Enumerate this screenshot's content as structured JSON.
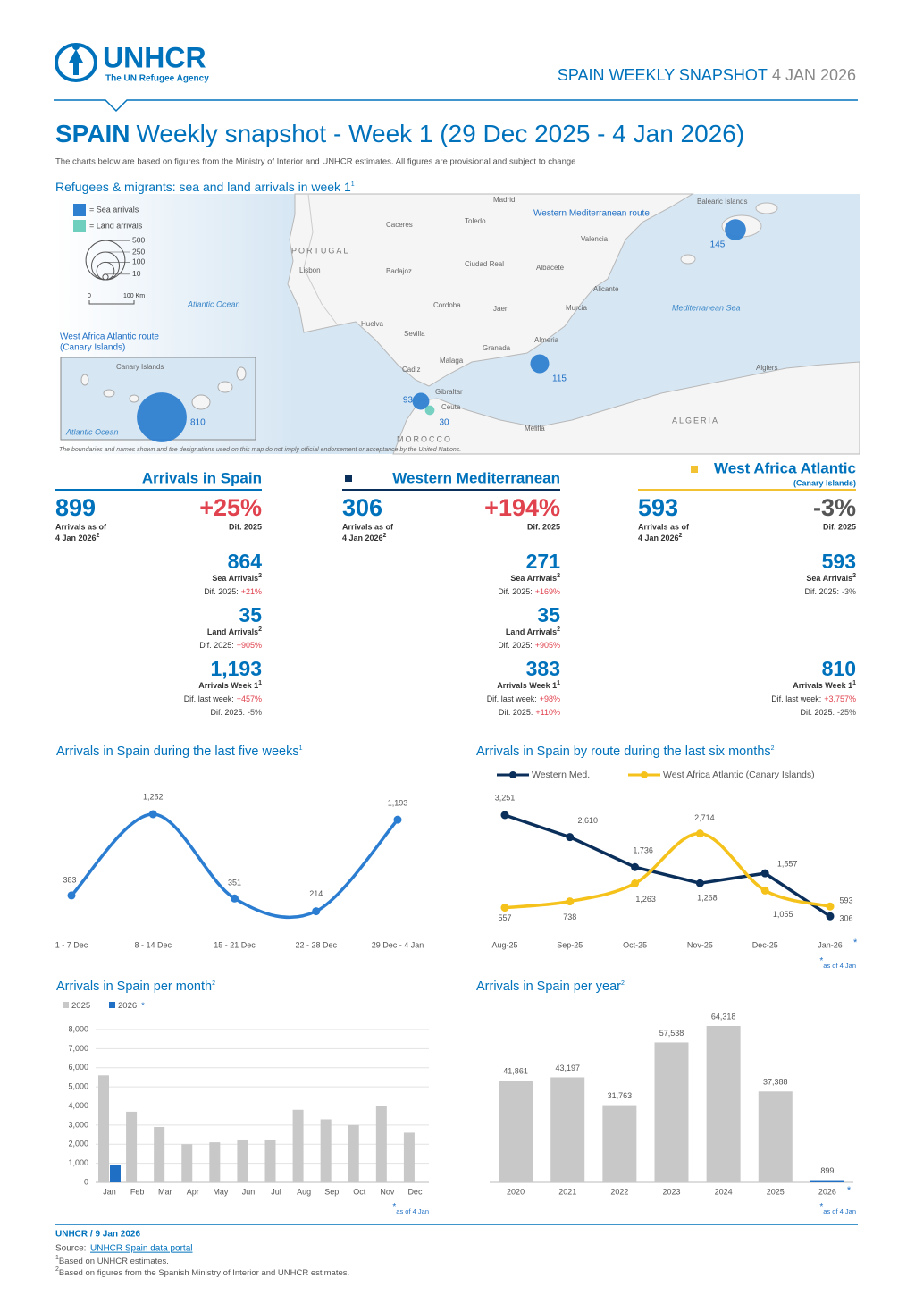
{
  "header": {
    "logo_name": "UNHCR",
    "logo_tagline": "The UN Refugee Agency",
    "snapshot_label": "SPAIN WEEKLY SNAPSHOT",
    "snapshot_date": "4 JAN 2026"
  },
  "title": {
    "country": "SPAIN",
    "text": "Weekly snapshot - Week 1 (29 Dec 2025 - 4 Jan 2026)",
    "intro": "The charts below are based on figures from the Ministry of Interior and UNHCR estimates. All figures are provisional and subject to change"
  },
  "map": {
    "title": "Refugees & migrants: sea and land arrivals in week 1",
    "title_note": "1",
    "legend": [
      {
        "label": "= Sea arrivals",
        "color": "#2f7fd0"
      },
      {
        "label": "= Land arrivals",
        "color": "#6fcfbf"
      }
    ],
    "size_legend": [
      500,
      250,
      100,
      10
    ],
    "scale_labels": [
      "0",
      "100 Km"
    ],
    "places": [
      "PORTUGAL",
      "Lisbon",
      "Caceres",
      "Toledo",
      "Madrid",
      "Badajoz",
      "Ciudad Real",
      "Valencia",
      "Albacete",
      "Murcia",
      "Cordoba",
      "Jaen",
      "Huelva",
      "Sevilla",
      "Granada",
      "Almeria",
      "Cadiz",
      "Malaga",
      "Gibraltar",
      "Ceuta",
      "Melilla",
      "Algiers",
      "ALGERIA",
      "MOROCCO",
      "Balearic Islands",
      "Atlantic Ocean",
      "Mediterranean Sea",
      "Western Mediterranean route",
      "West Africa Atlantic route",
      "(Canary Islands)",
      "Canary Islands",
      "Atlantic Ocean",
      "Alicante"
    ],
    "bubbles": [
      {
        "value": 145,
        "color": "#2f7fd0"
      },
      {
        "value": 115,
        "color": "#2f7fd0"
      },
      {
        "value": 93,
        "color": "#2f7fd0"
      },
      {
        "value": 30,
        "color": "#6fcfbf"
      },
      {
        "value": 810,
        "color": "#2f7fd0"
      }
    ],
    "disclaimer": "The boundaries and names shown and the designations used on this map do not imply official endorsement or acceptance by the United Nations."
  },
  "stats": [
    {
      "heading": "Arrivals in Spain",
      "main_value": "899",
      "main_label": "Arrivals as of",
      "main_date": "4 Jan 2026",
      "main_note": "2",
      "diff": "+25%",
      "diff_label": "Dif. 2025",
      "items": [
        {
          "value": "864",
          "label": "Sea Arrivals",
          "note": "2",
          "lines": [
            {
              "label": "Dif. 2025:",
              "value": "+21%"
            }
          ]
        },
        {
          "value": "35",
          "label": "Land Arrivals",
          "note": "2",
          "lines": [
            {
              "label": "Dif. 2025:",
              "value": "+905%"
            }
          ]
        },
        {
          "value": "1,193",
          "label": "Arrivals Week 1",
          "note": "1",
          "lines": [
            {
              "label": "Dif. last week:",
              "value": "+457%"
            },
            {
              "label": "Dif. 2025:",
              "value": "-5%"
            }
          ]
        }
      ]
    },
    {
      "heading": "Western Mediterranean",
      "main_value": "306",
      "main_label": "Arrivals as of",
      "main_date": "4 Jan 2026",
      "main_note": "2",
      "diff": "+194%",
      "diff_label": "Dif. 2025",
      "items": [
        {
          "value": "271",
          "label": "Sea Arrivals",
          "note": "2",
          "lines": [
            {
              "label": "Dif. 2025:",
              "value": "+169%"
            }
          ]
        },
        {
          "value": "35",
          "label": "Land Arrivals",
          "note": "2",
          "lines": [
            {
              "label": "Dif. 2025:",
              "value": "+905%"
            }
          ]
        },
        {
          "value": "383",
          "label": "Arrivals Week 1",
          "note": "1",
          "lines": [
            {
              "label": "Dif. last week:",
              "value": "+98%"
            },
            {
              "label": "Dif. 2025:",
              "value": "+110%"
            }
          ]
        }
      ]
    },
    {
      "heading": "West Africa Atlantic",
      "subheading": "(Canary Islands)",
      "main_value": "593",
      "main_label": "Arrivals as of",
      "main_date": "4 Jan 2026",
      "main_note": "2",
      "diff": "-3%",
      "diff_label": "Dif. 2025",
      "items": [
        {
          "value": "593",
          "label": "Sea Arrivals",
          "note": "2",
          "lines": [
            {
              "label": "Dif. 2025:",
              "value": "-3%"
            }
          ]
        },
        {
          "value": "810",
          "label": "Arrivals Week 1",
          "note": "1",
          "lines": [
            {
              "label": "Dif. last week:",
              "value": "+3,757%"
            },
            {
              "label": "Dif. 2025:",
              "value": "-25%"
            }
          ]
        }
      ]
    }
  ],
  "chart_data": [
    {
      "type": "line",
      "title": "Arrivals in Spain during the last five weeks",
      "title_note": "1",
      "categories": [
        "1 - 7 Dec",
        "8 - 14 Dec",
        "15 - 21 Dec",
        "22 - 28 Dec",
        "29 Dec - 4 Jan"
      ],
      "values": [
        383,
        1252,
        351,
        214,
        1193
      ],
      "value_labels": [
        "383",
        "1,252",
        "351",
        "214",
        "1,193"
      ],
      "color": "#2a7dd1",
      "smooth": true
    },
    {
      "type": "line",
      "title": "Arrivals in Spain by route during the last six months",
      "title_note": "2",
      "categories": [
        "Aug-25",
        "Sep-25",
        "Oct-25",
        "Nov-25",
        "Dec-25",
        "Jan-26"
      ],
      "series": [
        {
          "name": "Western Med.",
          "color": "#0b2f5b",
          "smooth": false,
          "values": [
            3251,
            2610,
            1736,
            1268,
            1557,
            306
          ],
          "value_labels": [
            "3,251",
            "2,610",
            "1,736",
            "1,268",
            "1,557",
            "306"
          ]
        },
        {
          "name": "West Africa Atlantic (Canary Islands)",
          "color": "#f5c21b",
          "smooth": true,
          "values": [
            557,
            738,
            1263,
            2714,
            1055,
            593
          ],
          "value_labels": [
            "557",
            "738",
            "1,263",
            "2,714",
            "1,055",
            "593"
          ]
        }
      ],
      "note_marker": "*",
      "note": "as of 4 Jan"
    },
    {
      "type": "bar",
      "title": "Arrivals in Spain per month",
      "title_note": "2",
      "categories": [
        "Jan",
        "Feb",
        "Mar",
        "Apr",
        "May",
        "Jun",
        "Jul",
        "Aug",
        "Sep",
        "Oct",
        "Nov",
        "Dec"
      ],
      "series": [
        {
          "name": "2025",
          "color": "#c8c8c8",
          "values": [
            5600,
            3700,
            2900,
            2000,
            2100,
            2200,
            2200,
            3800,
            3300,
            3000,
            4000,
            2600
          ]
        },
        {
          "name": "2026",
          "color": "#1f6fc5",
          "values": [
            899,
            null,
            null,
            null,
            null,
            null,
            null,
            null,
            null,
            null,
            null,
            null
          ]
        }
      ],
      "ylim": [
        0,
        8000
      ],
      "yticks": [
        0,
        {
          "value": 1000,
          "label": "1,000"
        },
        {
          "value": 2000,
          "label": "2,000"
        },
        {
          "value": 3000,
          "label": "3,000"
        },
        {
          "value": 4000,
          "label": "4,000"
        },
        {
          "value": 5000,
          "label": "5,000"
        },
        {
          "value": 6000,
          "label": "6,000"
        },
        {
          "value": 7000,
          "label": "7,000"
        },
        {
          "value": 8000,
          "label": "8,000"
        }
      ],
      "grid": true,
      "note_marker": "*",
      "note": "as of 4 Jan"
    },
    {
      "type": "bar",
      "title": "Arrivals in Spain per year",
      "title_note": "2",
      "categories": [
        "2020",
        "2021",
        "2022",
        "2023",
        "2024",
        "2025",
        "2026"
      ],
      "values": [
        41861,
        43197,
        31763,
        57538,
        64318,
        37388,
        899
      ],
      "value_labels": [
        "41,861",
        "43,197",
        "31,763",
        "57,538",
        "64,318",
        "37,388",
        "899"
      ],
      "colors": [
        "#c8c8c8",
        "#c8c8c8",
        "#c8c8c8",
        "#c8c8c8",
        "#c8c8c8",
        "#c8c8c8",
        "#1f6fc5"
      ],
      "note_marker": "*",
      "note": "as of 4 Jan"
    }
  ],
  "footer": {
    "org_date": "UNHCR / 9 Jan 2026",
    "source_label": "Source: ",
    "source_link": "UNHCR Spain data portal",
    "notes": [
      {
        "marker": "1",
        "text": "Based on UNHCR estimates."
      },
      {
        "marker": "2",
        "text": "Based on figures from the Spanish Ministry of Interior and UNHCR estimates."
      }
    ]
  }
}
